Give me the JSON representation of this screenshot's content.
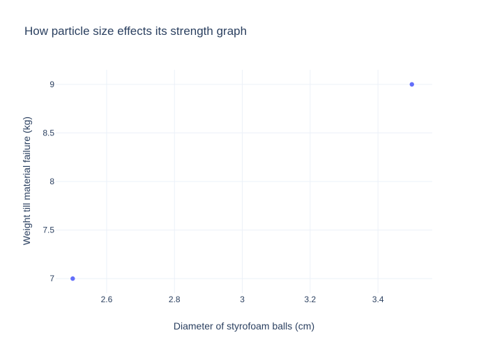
{
  "chart_data": {
    "type": "scatter",
    "title": "How particle size effects its strength graph",
    "xlabel": "Diameter of styrofoam balls (cm)",
    "ylabel": "Weight till material failure (kg)",
    "x": [
      2.5,
      3.5
    ],
    "y": [
      7,
      9
    ],
    "xlim": [
      2.45,
      3.56
    ],
    "ylim": [
      6.85,
      9.15
    ],
    "xticks": [
      2.6,
      2.8,
      3,
      3.2,
      3.4
    ],
    "xtick_labels": [
      "2.6",
      "2.8",
      "3",
      "3.2",
      "3.4"
    ],
    "yticks": [
      7,
      7.5,
      8,
      8.5,
      9
    ],
    "ytick_labels": [
      "7",
      "7.5",
      "8",
      "8.5",
      "9"
    ],
    "grid": true,
    "legend": false,
    "marker_color": "#636efa",
    "grid_color": "#ebf0f8",
    "text_color": "#2a3f5f"
  }
}
